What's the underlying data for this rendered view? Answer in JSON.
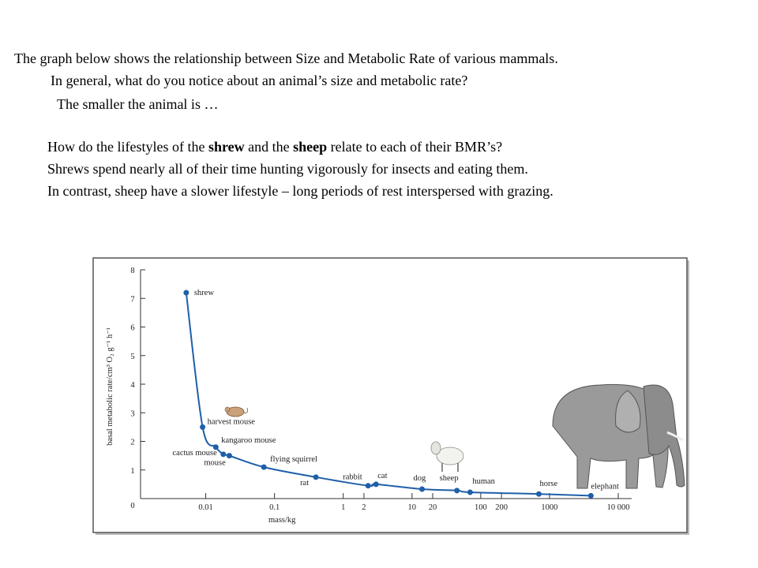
{
  "text": {
    "lines": [
      "The graph below shows the relationship between Size and Metabolic Rate of various mammals.",
      "In general, what do you notice about an animal’s size and metabolic rate?",
      "The smaller the animal is …"
    ],
    "question": [
      "How do the lifestyles of the ",
      "shrew",
      " and the ",
      "sheep",
      " relate to each of their BMR’s?"
    ],
    "answers": [
      "Shrews spend nearly all of their time hunting vigorously for insects and eating them.",
      "In contrast, sheep have a slower lifestyle – long periods of rest interspersed with grazing."
    ]
  },
  "chart_data": {
    "type": "line",
    "xlabel": "mass/kg",
    "ylabel": "basal metabolic rate/cm³ O₂ g⁻¹ h⁻¹",
    "xscale": "log",
    "color": "#1f5fa8",
    "series": [
      {
        "name": null,
        "labels": [
          "shrew",
          "harvest mouse",
          "kangaroo mouse",
          "cactus mouse",
          "mouse",
          "flying squirrel",
          "rat",
          "rabbit",
          "cat",
          "dog",
          "sheep",
          "human",
          "horse",
          "elephant"
        ],
        "x": [
          0.0052,
          0.009,
          0.014,
          0.018,
          0.022,
          0.07,
          0.4,
          2.3,
          3,
          14,
          45,
          70,
          700,
          4000
        ],
        "values": [
          7.2,
          2.5,
          1.8,
          1.55,
          1.5,
          1.1,
          0.75,
          0.45,
          0.5,
          0.33,
          0.28,
          0.22,
          0.16,
          0.1
        ]
      }
    ],
    "xlim": [
      0.001,
      10000
    ],
    "xticks": [
      0.01,
      0.1,
      1,
      2,
      10,
      20,
      100,
      200,
      1000,
      {
        "value": 10000,
        "label": "10 000"
      }
    ],
    "ylim": [
      0,
      8
    ],
    "yticks": [
      0,
      1,
      2,
      3,
      4,
      5,
      6,
      7,
      8
    ]
  }
}
